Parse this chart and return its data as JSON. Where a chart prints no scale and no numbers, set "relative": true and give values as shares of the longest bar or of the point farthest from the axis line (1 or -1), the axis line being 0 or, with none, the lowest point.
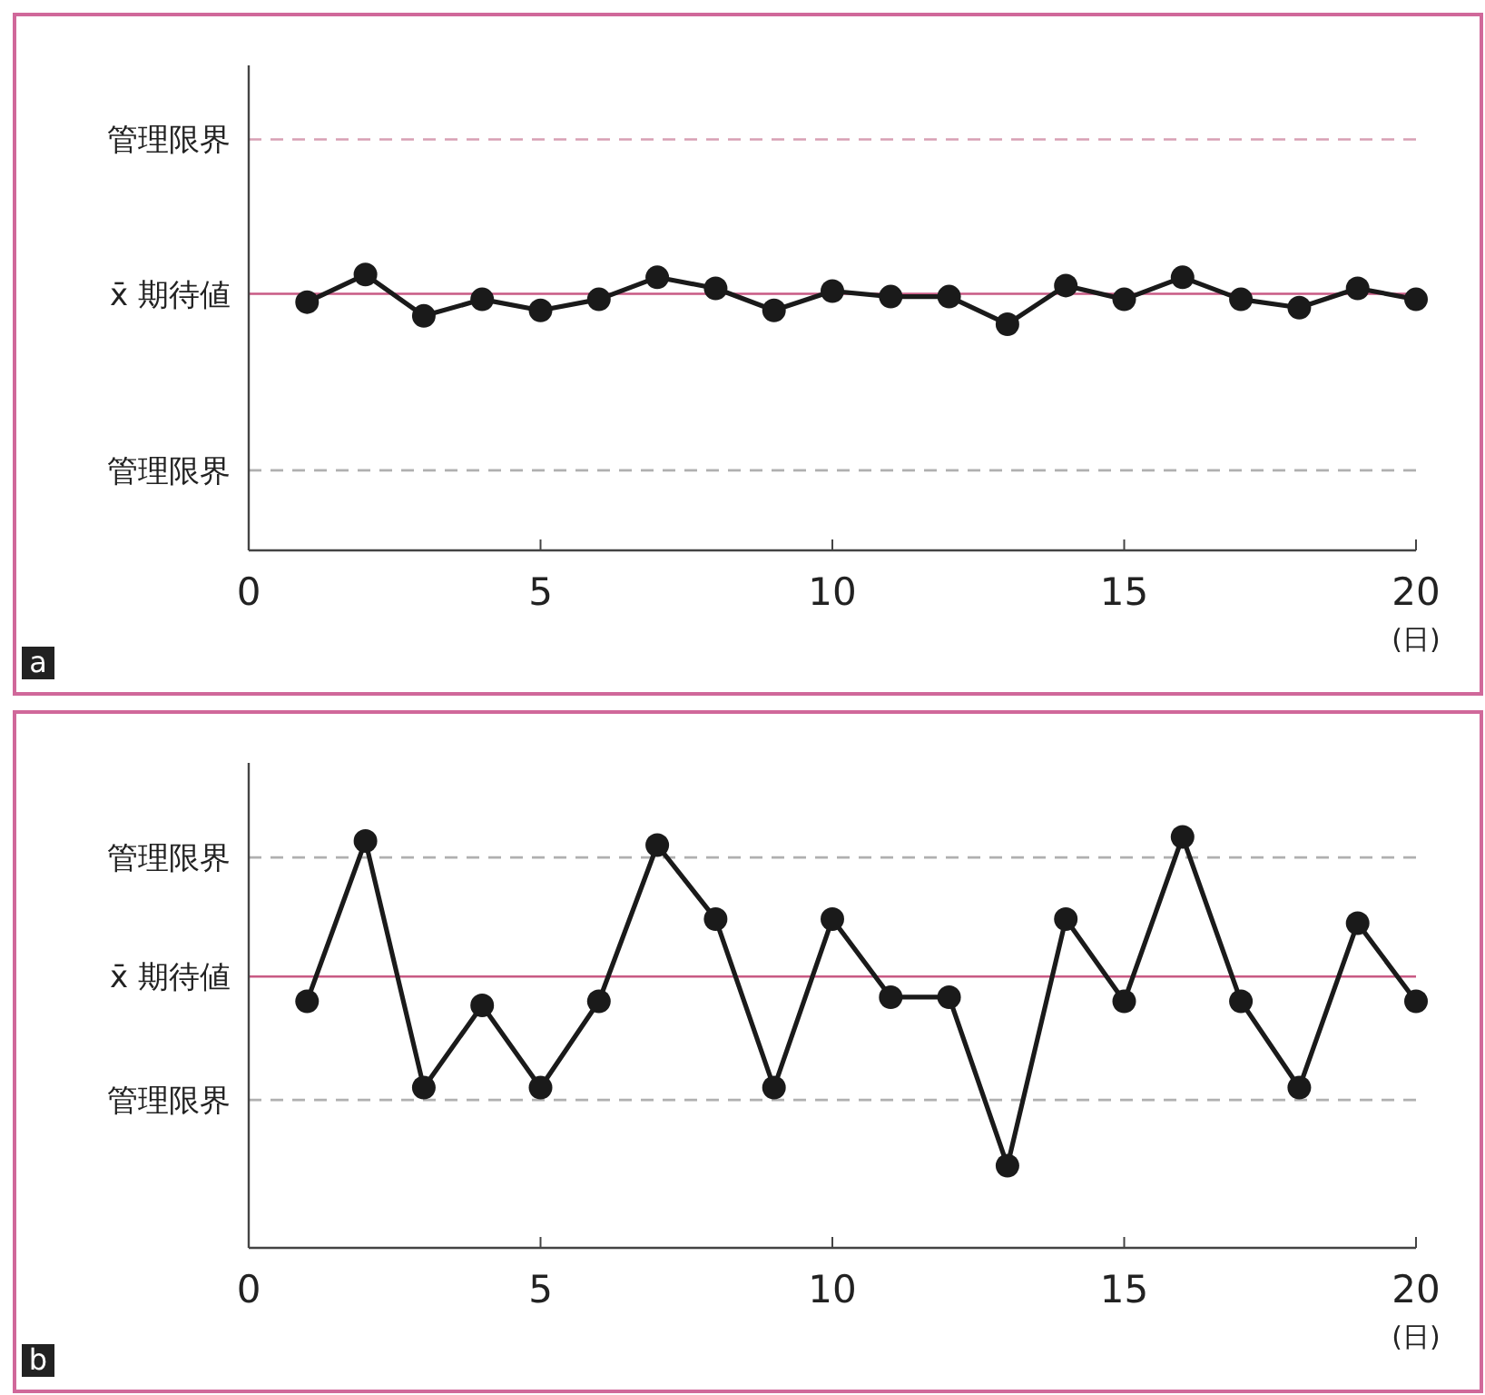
{
  "chart_data": [
    {
      "type": "line",
      "relative": true,
      "x": [
        1,
        2,
        3,
        4,
        5,
        6,
        7,
        8,
        9,
        10,
        11,
        12,
        13,
        14,
        15,
        16,
        17,
        18,
        19,
        20
      ],
      "series": [
        {
          "color": "#1a1a1a",
          "values": [
            0.9,
            1,
            0.85,
            0.91,
            0.87,
            0.91,
            0.99,
            0.95,
            0.87,
            0.94,
            0.92,
            0.92,
            0.82,
            0.96,
            0.91,
            0.99,
            0.91,
            0.88,
            0.95,
            0.91
          ]
        }
      ],
      "xlim": [
        0,
        20
      ],
      "xticks": [
        0,
        5,
        10,
        15,
        20
      ],
      "xlabel": "(日)",
      "ref_lines": [
        {
          "axis": "y",
          "value": 1.49,
          "label": "管理限界",
          "color": "#d8a0b4",
          "line_style": "dashed"
        },
        {
          "axis": "y",
          "value": 0.93,
          "label": "x̄ 期待値",
          "color": "#c85a84",
          "line_style": "solid"
        },
        {
          "axis": "y",
          "value": 0.29,
          "label": "管理限界",
          "color": "#b0b0b0",
          "line_style": "dashed"
        }
      ],
      "marker": "circle",
      "line_style": "solid",
      "annotations": [
        "a"
      ]
    },
    {
      "type": "line",
      "relative": true,
      "x": [
        1,
        2,
        3,
        4,
        5,
        6,
        7,
        8,
        9,
        10,
        11,
        12,
        13,
        14,
        15,
        16,
        17,
        18,
        19,
        20
      ],
      "series": [
        {
          "color": "#1a1a1a",
          "values": [
            0.6,
            0.99,
            0.39,
            0.59,
            0.39,
            0.6,
            0.98,
            0.8,
            0.39,
            0.8,
            0.61,
            0.61,
            0.2,
            0.8,
            0.6,
            1,
            0.6,
            0.39,
            0.79,
            0.6
          ]
        }
      ],
      "xlim": [
        0,
        20
      ],
      "xticks": [
        0,
        5,
        10,
        15,
        20
      ],
      "xlabel": "(日)",
      "ref_lines": [
        {
          "axis": "y",
          "value": 0.95,
          "label": "管理限界",
          "color": "#b0b0b0",
          "line_style": "dashed"
        },
        {
          "axis": "y",
          "value": 0.66,
          "label": "x̄ 期待値",
          "color": "#c85a84",
          "line_style": "solid"
        },
        {
          "axis": "y",
          "value": 0.36,
          "label": "管理限界",
          "color": "#b0b0b0",
          "line_style": "dashed"
        }
      ],
      "marker": "circle",
      "line_style": "solid",
      "annotations": [
        "b"
      ]
    }
  ]
}
